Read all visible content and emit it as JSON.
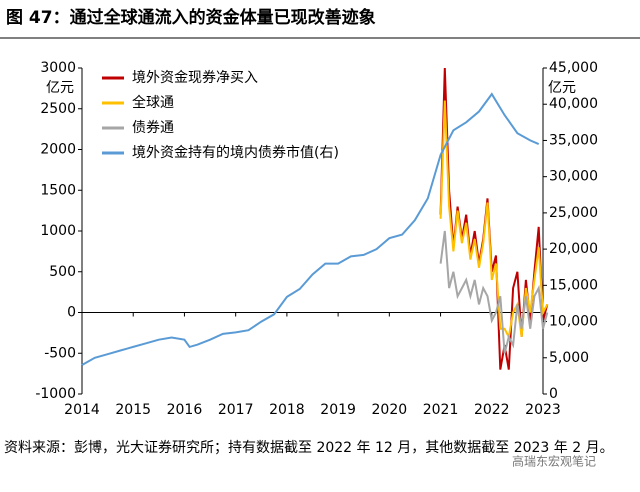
{
  "chart_data": {
    "type": "line",
    "title": "图 47：通过全球通流入的资金体量已现改善迹象",
    "ylabel": "亿元",
    "y2label": "亿元",
    "source": "资料来源：彭博，光大证券研究所；持有数据截至 2022 年 12 月，其他数据截至 2023 年 2 月。",
    "watermark": "高瑞东宏观笔记",
    "xlim": [
      2014,
      2023
    ],
    "xticks": [
      2014,
      2015,
      2016,
      2017,
      2018,
      2019,
      2020,
      2021,
      2022,
      2023
    ],
    "ylim": [
      -1000,
      3000
    ],
    "yticks": [
      -1000,
      -500,
      0,
      500,
      1000,
      1500,
      2000,
      2500,
      3000
    ],
    "y2lim": [
      0,
      45000
    ],
    "y2ticks": [
      0,
      {
        "value": 5000,
        "label": "5,000"
      },
      {
        "value": 10000,
        "label": "10,000"
      },
      {
        "value": 15000,
        "label": "15,000"
      },
      {
        "value": 20000,
        "label": "20,000"
      },
      {
        "value": 25000,
        "label": "25,000"
      },
      {
        "value": 30000,
        "label": "30,000"
      },
      {
        "value": 35000,
        "label": "35,000"
      },
      {
        "value": 40000,
        "label": "40,000"
      },
      {
        "value": 45000,
        "label": "45,000"
      }
    ],
    "legend": "top-left",
    "series": [
      {
        "name": "境外资金现券净买入",
        "color": "#c00000",
        "x": [
          2021.0,
          2021.083,
          2021.167,
          2021.25,
          2021.333,
          2021.417,
          2021.5,
          2021.583,
          2021.667,
          2021.75,
          2021.833,
          2021.917,
          2022.0,
          2022.083,
          2022.167,
          2022.25,
          2022.333,
          2022.417,
          2022.5,
          2022.583,
          2022.667,
          2022.75,
          2022.833,
          2022.917,
          2023.0,
          2023.083
        ],
        "values": [
          1200,
          3000,
          1500,
          800,
          1300,
          900,
          1200,
          700,
          1000,
          600,
          900,
          1400,
          500,
          700,
          -700,
          -400,
          -700,
          300,
          500,
          -300,
          400,
          -100,
          500,
          1050,
          -100,
          100
        ]
      },
      {
        "name": "全球通",
        "color": "#ffc000",
        "x": [
          2021.0,
          2021.083,
          2021.167,
          2021.25,
          2021.333,
          2021.417,
          2021.5,
          2021.583,
          2021.667,
          2021.75,
          2021.833,
          2021.917,
          2022.0,
          2022.083,
          2022.167,
          2022.25,
          2022.333,
          2022.417,
          2022.5,
          2022.583,
          2022.667,
          2022.75,
          2022.833,
          2022.917,
          2023.0,
          2023.083
        ],
        "values": [
          1150,
          2600,
          1300,
          750,
          1250,
          850,
          1100,
          650,
          900,
          550,
          850,
          1350,
          400,
          600,
          -200,
          -200,
          -300,
          0,
          100,
          -300,
          300,
          0,
          400,
          800,
          0,
          100
        ]
      },
      {
        "name": "债券通",
        "color": "#a6a6a6",
        "x": [
          2021.0,
          2021.083,
          2021.167,
          2021.25,
          2021.333,
          2021.417,
          2021.5,
          2021.583,
          2021.667,
          2021.75,
          2021.833,
          2021.917,
          2022.0,
          2022.083,
          2022.167,
          2022.25,
          2022.333,
          2022.417,
          2022.5,
          2022.583,
          2022.667,
          2022.75,
          2022.833,
          2022.917,
          2023.0,
          2023.083
        ],
        "values": [
          600,
          1000,
          300,
          500,
          200,
          300,
          400,
          200,
          400,
          100,
          300,
          200,
          -100,
          0,
          200,
          -500,
          -300,
          -400,
          100,
          -200,
          200,
          -200,
          200,
          300,
          -200,
          0
        ]
      },
      {
        "name": "境外资金持有的境内债券市值(右)",
        "color": "#5b9bd5",
        "axis": "y2",
        "x": [
          2014.0,
          2014.25,
          2014.5,
          2014.75,
          2015.0,
          2015.25,
          2015.5,
          2015.75,
          2016.0,
          2016.1,
          2016.25,
          2016.5,
          2016.75,
          2017.0,
          2017.25,
          2017.5,
          2017.75,
          2018.0,
          2018.25,
          2018.5,
          2018.75,
          2019.0,
          2019.25,
          2019.5,
          2019.75,
          2020.0,
          2020.25,
          2020.5,
          2020.75,
          2021.0,
          2021.25,
          2021.5,
          2021.75,
          2022.0,
          2022.25,
          2022.5,
          2022.75,
          2022.917
        ],
        "values": [
          4000,
          5000,
          5500,
          6000,
          6500,
          7000,
          7500,
          7800,
          7500,
          6500,
          6800,
          7500,
          8300,
          8500,
          8800,
          10000,
          11000,
          13400,
          14500,
          16500,
          18000,
          18000,
          19000,
          19200,
          20000,
          21500,
          22000,
          24000,
          27000,
          33000,
          36400,
          37500,
          39000,
          41400,
          38500,
          36000,
          35000,
          34500
        ]
      }
    ]
  }
}
